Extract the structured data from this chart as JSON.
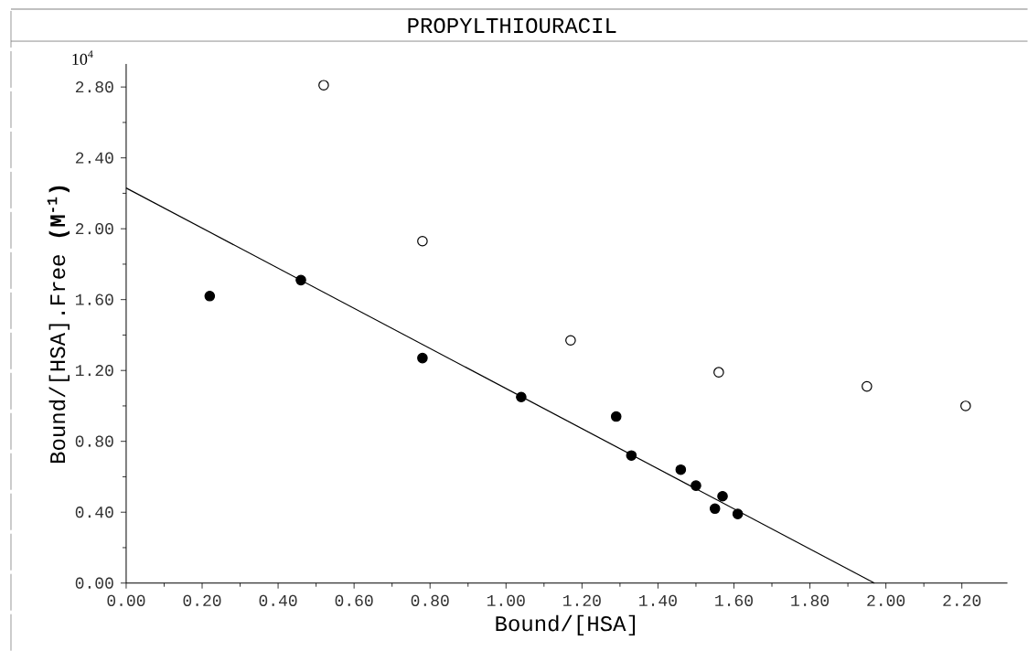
{
  "chart_data": {
    "type": "scatter",
    "title": "PROPYLTHIOURACIL",
    "xlabel": "Bound/[HSA]",
    "ylabel": "Bound/[HSA].Free **(M$^{-1}$)**",
    "annotations": [
      "10$^{4}$"
    ],
    "xlim": [
      0,
      2.32
    ],
    "ylim": [
      0,
      2.93
    ],
    "xticks": [
      {
        "value": 0,
        "label": "0.00"
      },
      {
        "value": 0.2,
        "label": "0.20"
      },
      {
        "value": 0.4,
        "label": "0.40"
      },
      {
        "value": 0.6,
        "label": "0.60"
      },
      {
        "value": 0.8,
        "label": "0.80"
      },
      {
        "value": 1.0,
        "label": "1.00"
      },
      {
        "value": 1.2,
        "label": "1.20"
      },
      {
        "value": 1.4,
        "label": "1.40"
      },
      {
        "value": 1.6,
        "label": "1.60"
      },
      {
        "value": 1.8,
        "label": "1.80"
      },
      {
        "value": 2.0,
        "label": "2.00"
      },
      {
        "value": 2.2,
        "label": "2.20"
      }
    ],
    "yticks": [
      {
        "value": 0,
        "label": "0.00"
      },
      {
        "value": 0.4,
        "label": "0.40"
      },
      {
        "value": 0.8,
        "label": "0.80"
      },
      {
        "value": 1.2,
        "label": "1.20"
      },
      {
        "value": 1.6,
        "label": "1.60"
      },
      {
        "value": 2.0,
        "label": "2.00"
      },
      {
        "value": 2.4,
        "label": "2.40"
      },
      {
        "value": 2.8,
        "label": "2.80"
      }
    ],
    "grid": false,
    "legend": false,
    "series": [
      {
        "marker": "circle",
        "color": "#000000",
        "x": [
          0.22,
          0.46,
          0.78,
          1.04,
          1.29,
          1.33,
          1.46,
          1.5,
          1.57,
          1.55,
          1.61
        ],
        "values": [
          1.62,
          1.71,
          1.27,
          1.05,
          0.94,
          0.72,
          0.64,
          0.55,
          0.49,
          0.42,
          0.39
        ]
      },
      {
        "marker": "circle",
        "color": "#ffffff",
        "x": [
          0.52,
          0.78,
          1.17,
          1.56,
          1.95,
          2.21
        ],
        "values": [
          2.81,
          1.93,
          1.37,
          1.19,
          1.11,
          1.0
        ]
      },
      {
        "type": "line",
        "marker": "none",
        "color": "#000000",
        "x": [
          0,
          1.97
        ],
        "values": [
          2.23,
          0
        ]
      }
    ]
  }
}
